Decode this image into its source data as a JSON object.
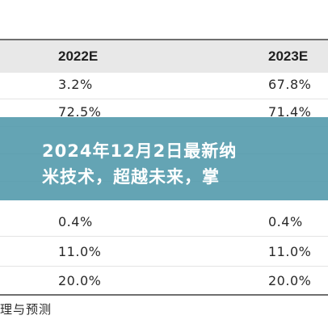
{
  "table": {
    "headers": [
      "2022E",
      "2023E"
    ],
    "rows": [
      [
        "3.2%",
        "67.8%"
      ],
      [
        "72.5%",
        "71.4%"
      ],
      [
        "",
        ""
      ],
      [
        "",
        ""
      ],
      [
        "0.4%",
        "0.4%"
      ],
      [
        "11.0%",
        "11.0%"
      ],
      [
        "20.0%",
        "20.0%"
      ]
    ]
  },
  "banner": {
    "line1": "2024年12月2日最新纳",
    "line2": "米技术，超越未来，掌"
  },
  "caption": "理与预测",
  "colors": {
    "banner_overlay": "#4e97aa",
    "header_background": "#e8e8e8"
  }
}
